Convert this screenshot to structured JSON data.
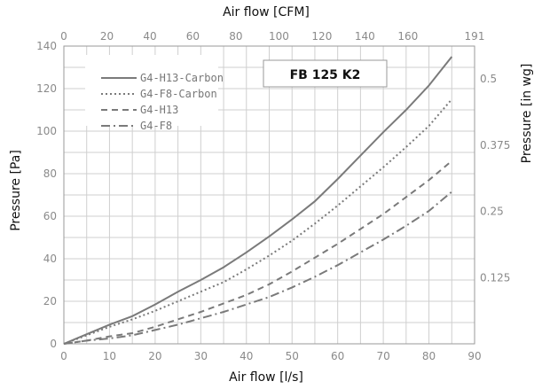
{
  "chart_data": {
    "type": "line",
    "title": "FB 125 K2",
    "xlabel": "Air flow [l/s]",
    "ylabel": "Pressure [Pa]",
    "x2label": "Air flow [CFM]",
    "y2label": "Pressure [in wg]",
    "xlim": [
      0,
      90
    ],
    "ylim": [
      0,
      140
    ],
    "x_ticks": [
      "0",
      "10",
      "20",
      "30",
      "40",
      "50",
      "60",
      "70",
      "80",
      "90"
    ],
    "y_ticks": [
      "0",
      "20",
      "40",
      "60",
      "80",
      "100",
      "120",
      "140"
    ],
    "x2_ticks": [
      "0",
      "20",
      "40",
      "60",
      "80",
      "100",
      "120",
      "140",
      "160",
      "191"
    ],
    "y2_ticks": [
      "0.125",
      "0.25",
      "0.375",
      "0.5"
    ],
    "legend_placement": "top-left",
    "grid": true,
    "series": [
      {
        "name": "G4-H13-Carbon",
        "dash": "solid",
        "x": [
          0,
          5,
          10,
          15,
          20,
          25,
          30,
          35,
          40,
          45,
          50,
          55,
          60,
          65,
          70,
          75,
          80,
          85
        ],
        "y": [
          0,
          4.5,
          9,
          13,
          18.5,
          24.5,
          30,
          36,
          43,
          50.5,
          58.5,
          67,
          77.5,
          88.5,
          99.5,
          110,
          121.5,
          135
        ]
      },
      {
        "name": "G4-F8-Carbon",
        "dash": "dot",
        "x": [
          0,
          5,
          10,
          15,
          20,
          25,
          30,
          35,
          40,
          45,
          50,
          55,
          60,
          65,
          70,
          75,
          80,
          85
        ],
        "y": [
          0,
          4,
          8,
          11.5,
          15.5,
          20,
          24.5,
          29,
          35,
          41.5,
          48.5,
          56.5,
          65,
          74,
          83,
          92.5,
          102.5,
          115
        ]
      },
      {
        "name": "G4-H13",
        "dash": "dash",
        "x": [
          0,
          5,
          10,
          15,
          20,
          25,
          30,
          35,
          40,
          45,
          50,
          55,
          60,
          65,
          70,
          75,
          80,
          85
        ],
        "y": [
          0,
          1.5,
          3.5,
          5,
          8,
          11.5,
          15,
          19,
          23,
          28,
          34,
          40.5,
          47,
          54,
          61,
          69,
          77,
          86
        ]
      },
      {
        "name": "G4-F8",
        "dash": "dashdot",
        "x": [
          0,
          5,
          10,
          15,
          20,
          25,
          30,
          35,
          40,
          45,
          50,
          55,
          60,
          65,
          70,
          75,
          80,
          85
        ],
        "y": [
          0,
          1.5,
          2.5,
          4,
          6.5,
          9,
          12,
          15,
          18.5,
          22,
          26.5,
          31.5,
          37,
          43,
          49,
          55.5,
          62.5,
          71.5
        ]
      }
    ]
  }
}
